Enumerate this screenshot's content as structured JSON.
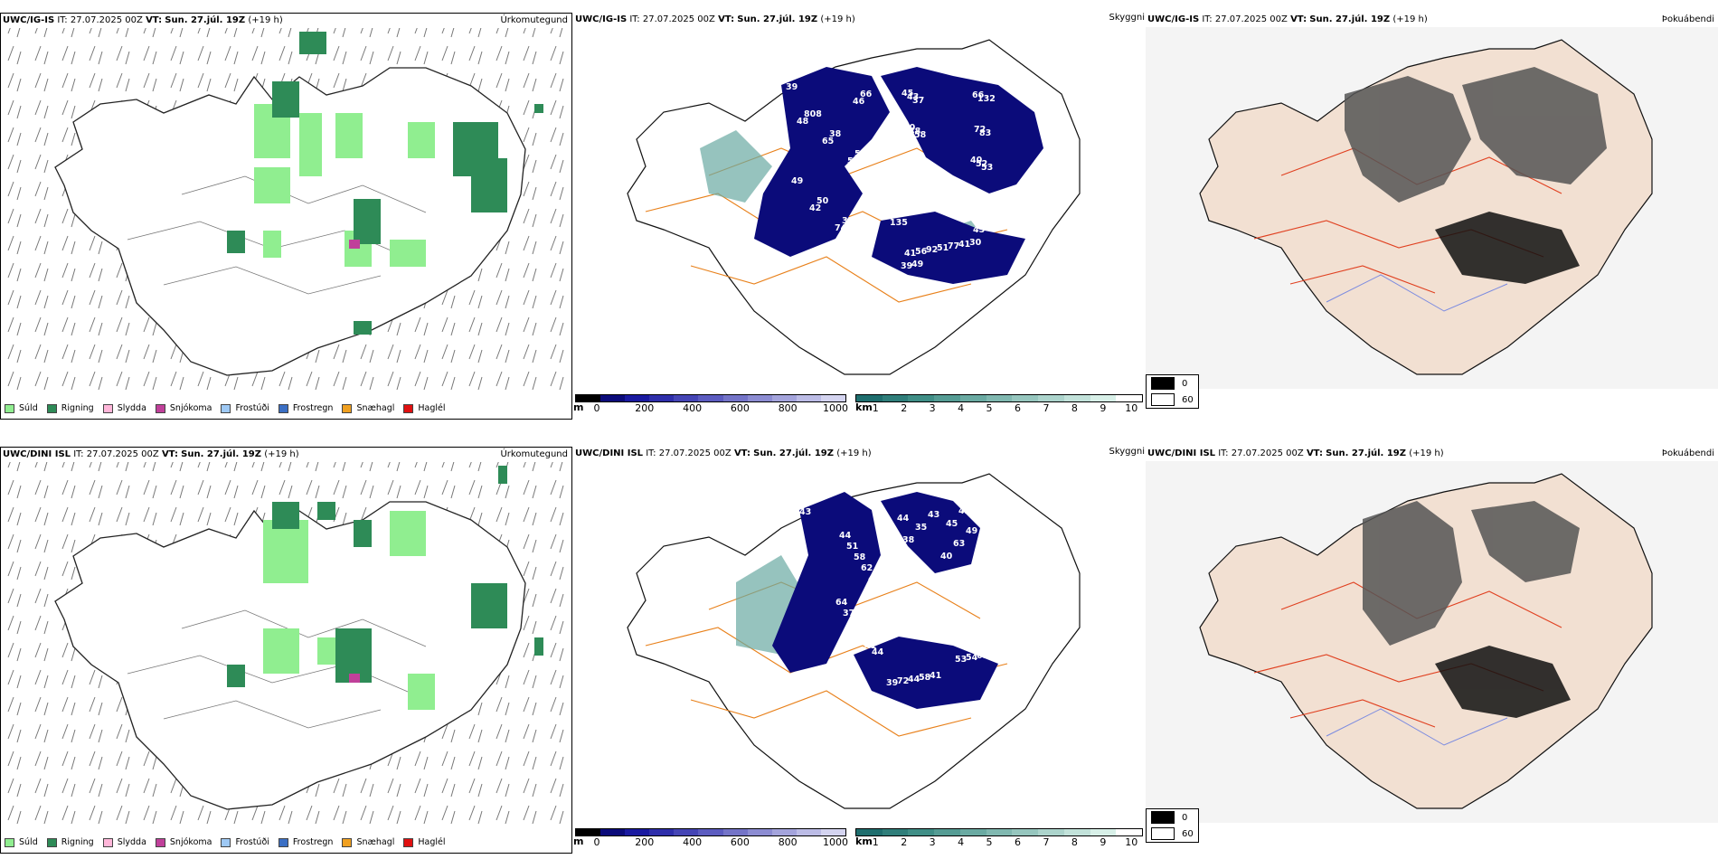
{
  "rows": [
    {
      "model": "UWC/IG-IS",
      "it_label": "IT:",
      "it_value": "27.07.2025 00Z",
      "vt_label": "VT:",
      "vt_value": "Sun. 27.júl. 19Z",
      "lead": "(+19 h)",
      "cloud_numbers": [
        "39",
        "45",
        "41",
        "57",
        "40",
        "45",
        "35",
        "70",
        "56",
        "38",
        "66",
        "46",
        "50",
        "88",
        "92",
        "808",
        "72",
        "78",
        "49",
        "43",
        "51",
        "66",
        "52",
        "54",
        "53",
        "48",
        "77",
        "74",
        "132",
        "135",
        "65",
        "55",
        "41",
        "42",
        "83",
        "39",
        "48",
        "37",
        "30",
        "33",
        "53",
        "49",
        "46",
        "58"
      ]
    },
    {
      "model": "UWC/DINI ISL",
      "it_label": "IT:",
      "it_value": "27.07.2025 00Z",
      "vt_label": "VT:",
      "vt_value": "Sun. 27.júl. 19Z",
      "lead": "(+19 h)",
      "cloud_numbers": [
        "43",
        "44",
        "39",
        "40",
        "49",
        "53",
        "41",
        "63",
        "72",
        "62",
        "40",
        "54",
        "39",
        "43",
        "44",
        "58",
        "35",
        "65",
        "82",
        "38",
        "58",
        "51",
        "46",
        "49",
        "37",
        "42",
        "41",
        "44",
        "45",
        "44",
        "64"
      ]
    }
  ],
  "panel_titles": {
    "precip": "Úrkomutegund",
    "visibility": "Skyggni",
    "fog": "Þokuábendi"
  },
  "precip_legend": [
    {
      "label": "Súld",
      "color": "#90ee90"
    },
    {
      "label": "Rigning",
      "color": "#2e8b57"
    },
    {
      "label": "Slydda",
      "color": "#ffb6d9"
    },
    {
      "label": "Snjókoma",
      "color": "#c0409a"
    },
    {
      "label": "Frostúði",
      "color": "#9ec9f5"
    },
    {
      "label": "Frostregn",
      "color": "#3b6fc4"
    },
    {
      "label": "Snæhagl",
      "color": "#f0a020"
    },
    {
      "label": "Haglél",
      "color": "#e01010"
    }
  ],
  "cloud_base_scale": {
    "unit": "m",
    "ticks": [
      "0",
      "200",
      "400",
      "600",
      "800",
      "1000"
    ],
    "colors": [
      "#000000",
      "#0b0b7a",
      "#1a1aa0",
      "#2e2eaa",
      "#4545b5",
      "#5c5cc0",
      "#7474c8",
      "#8c8cd2",
      "#a4a4dc",
      "#bcbce6",
      "#d4d4f0"
    ]
  },
  "visibility_scale": {
    "unit": "km",
    "ticks": [
      "1",
      "2",
      "3",
      "4",
      "5",
      "6",
      "7",
      "8",
      "9",
      "10"
    ],
    "colors": [
      "#1f6e6e",
      "#2f7e7a",
      "#3f8e86",
      "#559c94",
      "#6aaaa2",
      "#80b8b0",
      "#96c6be",
      "#acd4cc",
      "#c2e2da",
      "#d8f0e8",
      "#ffffff"
    ]
  },
  "fog_legend": [
    {
      "label": "0",
      "color": "#000000"
    },
    {
      "label": "60",
      "color": "#ffffff"
    }
  ]
}
